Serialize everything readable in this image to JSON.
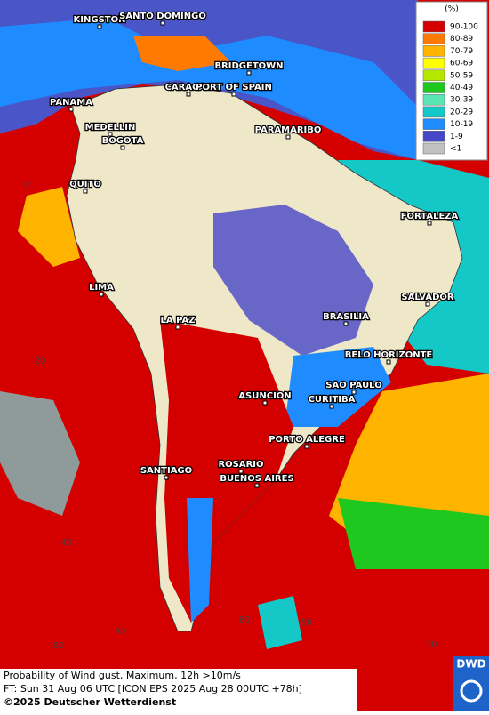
{
  "legend": {
    "title": "(%)",
    "items": [
      {
        "label": "90-100",
        "color": "#d40000"
      },
      {
        "label": "80-89",
        "color": "#ff7a00"
      },
      {
        "label": "70-79",
        "color": "#ffb400"
      },
      {
        "label": "60-69",
        "color": "#ffff00"
      },
      {
        "label": "50-59",
        "color": "#b4e600"
      },
      {
        "label": "40-49",
        "color": "#1ec81e"
      },
      {
        "label": "30-39",
        "color": "#5ae6b4"
      },
      {
        "label": "20-29",
        "color": "#14c8c8"
      },
      {
        "label": "10-19",
        "color": "#1e8cff"
      },
      {
        "label": "1-9",
        "color": "#4646c8"
      },
      {
        "label": "<1",
        "color": "#c0c0c0"
      }
    ]
  },
  "cities": [
    "KINGSTON",
    "SANTO DOMINGO",
    "BRIDGETOWN",
    "CARACAS",
    "PORT OF SPAIN",
    "PANAMA",
    "MEDELLIN",
    "BOGOTA",
    "PARAMARIBO",
    "QUITO",
    "FORTALEZA",
    "LIMA",
    "SALVADOR",
    "LA PAZ",
    "BRASILIA",
    "BELO HORIZONTE",
    "SAO PAULO",
    "CURITIBA",
    "ASUNCION",
    "PORTO ALEGRE",
    "ROSARIO",
    "BUENOS AIRES",
    "SANTIAGO"
  ],
  "grid_labels": [
    "0",
    "20",
    "40",
    "60",
    "40",
    "60",
    "50",
    "30"
  ],
  "footer": {
    "title": "Probability of Wind gust, Maximum, 12h >10m/s",
    "forecast": "FT: Sun 31 Aug 06 UTC [ICON EPS 2025 Aug 28 00UTC +78h]",
    "copyright": "©2025 Deutscher Wetterdienst"
  },
  "logo": "DWD"
}
